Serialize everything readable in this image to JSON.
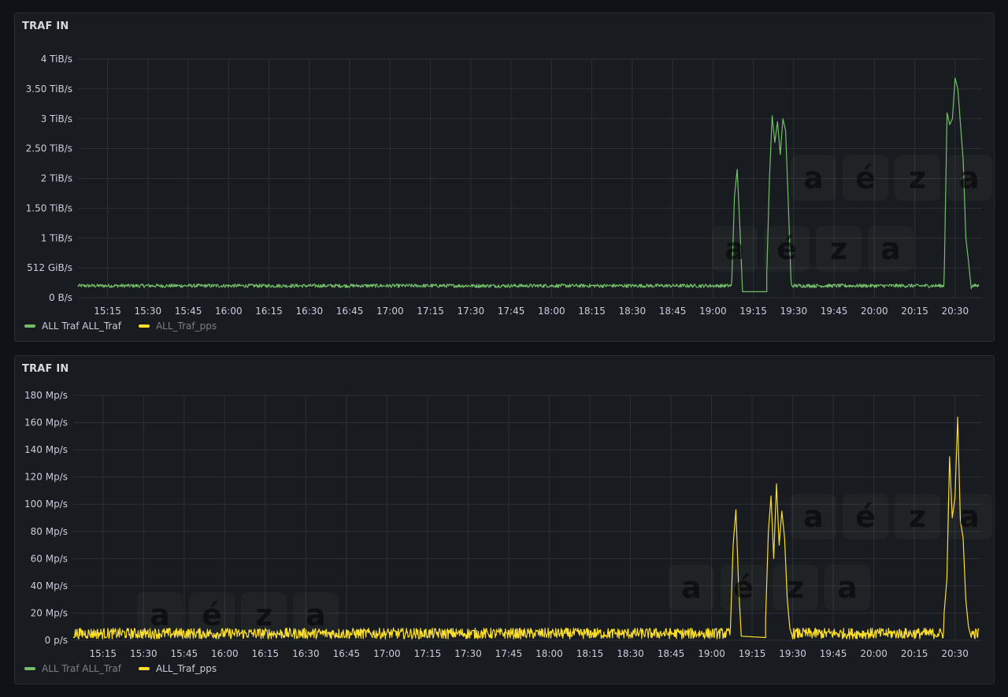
{
  "logo": {
    "letters": [
      "a",
      "é",
      "з",
      "a"
    ]
  },
  "watermark": {
    "letters": [
      "a",
      "é",
      "z",
      "a"
    ]
  },
  "colors": {
    "green": "#73bf69",
    "yellow": "#fade2a",
    "grid": "#2c2f35",
    "text": "#ccccdc"
  },
  "legend": [
    {
      "label": "ALL Traf ALL_Traf",
      "color": "#73bf69"
    },
    {
      "label": "ALL_Traf_pps",
      "color": "#fade2a"
    }
  ],
  "chart_data": [
    {
      "type": "line",
      "title": "TRAF IN",
      "active_series": 0,
      "y_ticks": [
        "0 B/s",
        "512 GiB/s",
        "1 TiB/s",
        "1.50 TiB/s",
        "2 TiB/s",
        "2.50 TiB/s",
        "3 TiB/s",
        "3.50 TiB/s",
        "4 TiB/s"
      ],
      "ylim": [
        0,
        4
      ],
      "y_unit": "TiB/s",
      "x_ticks": [
        "15:15",
        "15:30",
        "15:45",
        "16:00",
        "16:15",
        "16:30",
        "16:45",
        "17:00",
        "17:15",
        "17:30",
        "17:45",
        "18:00",
        "18:15",
        "18:30",
        "18:45",
        "19:00",
        "19:15",
        "19:30",
        "19:45",
        "20:00",
        "20:15",
        "20:30"
      ],
      "series": [
        {
          "name": "ALL Traf ALL_Traf",
          "color": "#73bf69",
          "baseline": 0.2,
          "noise": 0.03,
          "events": [
            {
              "x": [
                "19:07",
                "19:08",
                "19:09",
                "19:10",
                "19:11"
              ],
              "y": [
                0.3,
                1.7,
                2.15,
                1.2,
                0.1
              ]
            },
            {
              "x": [
                "19:11",
                "19:20"
              ],
              "y": [
                0.1,
                0.1
              ]
            },
            {
              "x": [
                "19:20",
                "19:21",
                "19:22",
                "19:23",
                "19:24",
                "19:25",
                "19:26",
                "19:27",
                "19:28",
                "19:29"
              ],
              "y": [
                0.4,
                2.0,
                3.05,
                2.6,
                2.95,
                2.4,
                3.0,
                2.8,
                1.6,
                0.3
              ]
            },
            {
              "x": [
                "20:26",
                "20:27",
                "20:28",
                "20:29",
                "20:30",
                "20:31",
                "20:32",
                "20:33",
                "20:34",
                "20:35",
                "20:36"
              ],
              "y": [
                0.5,
                3.1,
                2.9,
                3.0,
                3.68,
                3.5,
                2.9,
                2.3,
                1.0,
                0.6,
                0.15
              ]
            }
          ]
        }
      ]
    },
    {
      "type": "line",
      "title": "TRAF IN",
      "active_series": 1,
      "y_ticks": [
        "0 p/s",
        "20 Mp/s",
        "40 Mp/s",
        "60 Mp/s",
        "80 Mp/s",
        "100 Mp/s",
        "120 Mp/s",
        "140 Mp/s",
        "160 Mp/s",
        "180 Mp/s"
      ],
      "ylim": [
        0,
        180
      ],
      "y_unit": "Mp/s",
      "x_ticks": [
        "15:15",
        "15:30",
        "15:45",
        "16:00",
        "16:15",
        "16:30",
        "16:45",
        "17:00",
        "17:15",
        "17:30",
        "17:45",
        "18:00",
        "18:15",
        "18:30",
        "18:45",
        "19:00",
        "19:15",
        "19:30",
        "19:45",
        "20:00",
        "20:15",
        "20:30"
      ],
      "series": [
        {
          "name": "ALL_Traf_pps",
          "color": "#fade2a",
          "baseline": 5,
          "noise": 4,
          "events": [
            {
              "x": [
                "19:07",
                "19:08",
                "19:09",
                "19:10",
                "19:11"
              ],
              "y": [
                10,
                70,
                96,
                40,
                3
              ]
            },
            {
              "x": [
                "19:11",
                "19:20"
              ],
              "y": [
                3,
                2
              ]
            },
            {
              "x": [
                "19:20",
                "19:21",
                "19:22",
                "19:23",
                "19:24",
                "19:25",
                "19:26",
                "19:27",
                "19:28",
                "19:29"
              ],
              "y": [
                15,
                80,
                106,
                60,
                115,
                70,
                95,
                75,
                30,
                8
              ]
            },
            {
              "x": [
                "20:26",
                "20:27",
                "20:28",
                "20:29",
                "20:30",
                "20:31",
                "20:32",
                "20:33",
                "20:34",
                "20:35",
                "20:36"
              ],
              "y": [
                20,
                45,
                135,
                90,
                105,
                164,
                88,
                75,
                30,
                10,
                2
              ]
            }
          ]
        }
      ]
    }
  ]
}
